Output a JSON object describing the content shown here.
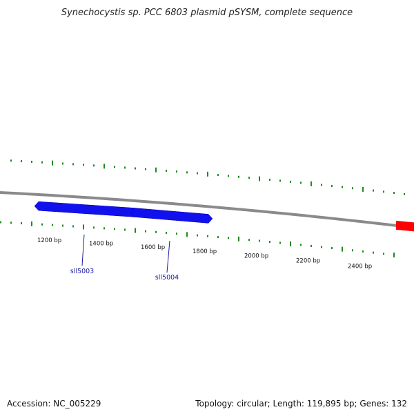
{
  "title": "Synechocystis sp. PCC 6803 plasmid pSYSM, complete sequence",
  "footer": {
    "accession": "Accession: NC_005229",
    "summary": "Topology: circular; Length: 119,895 bp; Genes: 132"
  },
  "colors": {
    "backbone": "#8a8a8a",
    "tick": "#1f8a1f",
    "gene_forward": "#ff0000",
    "gene_reverse": "#1111ee",
    "gene_label": "#1a1aa6"
  },
  "ticks": [
    {
      "bp": 1200,
      "label": "1200 bp"
    },
    {
      "bp": 1400,
      "label": "1400 bp"
    },
    {
      "bp": 1600,
      "label": "1600 bp"
    },
    {
      "bp": 1800,
      "label": "1800 bp"
    },
    {
      "bp": 2000,
      "label": "2000 bp"
    },
    {
      "bp": 2200,
      "label": "2200 bp"
    },
    {
      "bp": 2400,
      "label": "2400 bp"
    }
  ],
  "genes": [
    {
      "name": "sll5003",
      "strand": "reverse"
    },
    {
      "name": "sll5004",
      "strand": "reverse"
    },
    {
      "name": "",
      "strand": "forward"
    }
  ]
}
